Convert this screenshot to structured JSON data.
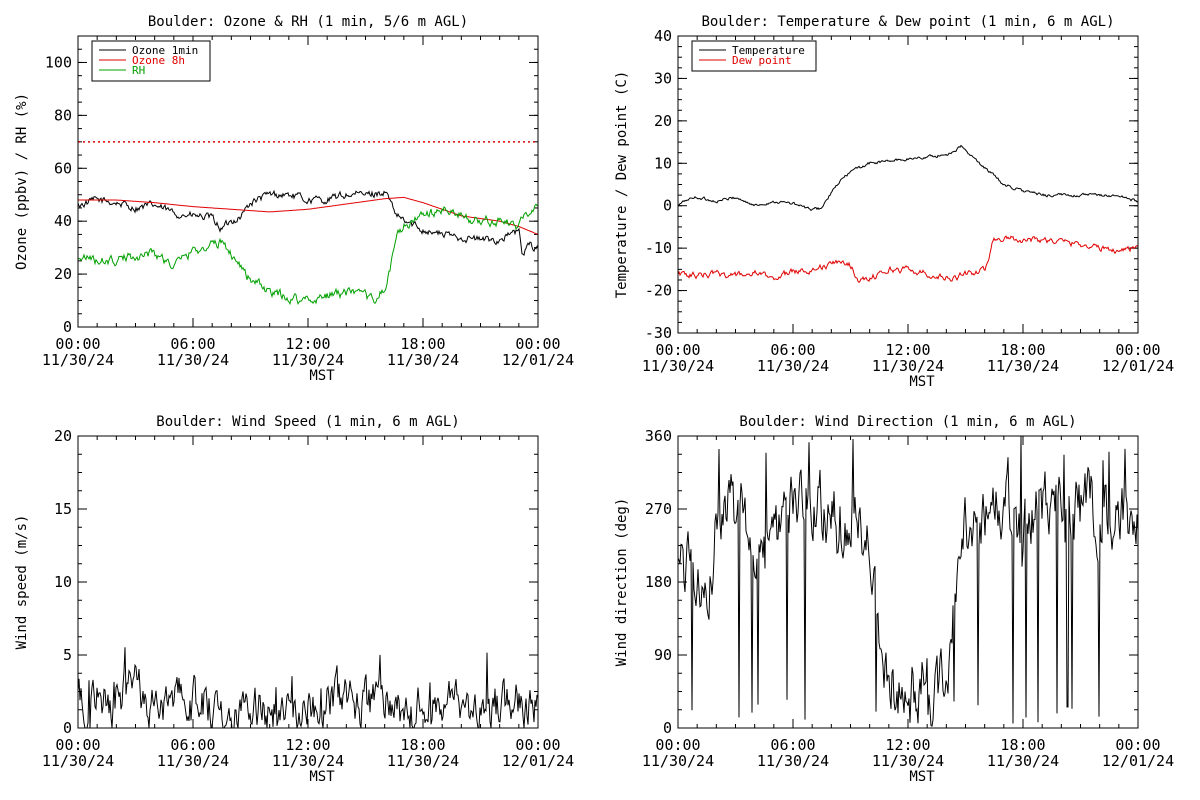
{
  "chart_data": [
    {
      "type": "line",
      "title": "Boulder: Ozone & RH (1 min, 5/6 m AGL)",
      "xlabel": "MST",
      "ylabel": "Ozone (ppbv) / RH (%)",
      "xlim": [
        0,
        24
      ],
      "ylim": [
        0,
        110
      ],
      "yticks": [
        0,
        20,
        40,
        60,
        80,
        100
      ],
      "xticks": [
        {
          "time": "00:00",
          "date": "11/30/24"
        },
        {
          "time": "06:00",
          "date": "11/30/24"
        },
        {
          "time": "12:00",
          "date": "11/30/24"
        },
        {
          "time": "18:00",
          "date": "11/30/24"
        },
        {
          "time": "00:00",
          "date": "12/01/24"
        }
      ],
      "legend": "top-left",
      "reference_line": {
        "y": 70,
        "color": "#e00000",
        "style": "dotted"
      },
      "series": [
        {
          "name": "Ozone 1min",
          "color": "#000000",
          "noise": 1.2,
          "x": [
            0,
            1,
            2,
            3,
            4,
            5,
            6,
            7,
            7.5,
            8,
            8.5,
            9,
            10,
            11,
            12,
            13,
            14,
            15,
            16,
            16.2,
            16.5,
            17,
            18,
            19,
            20,
            21,
            22,
            22.5,
            23,
            23.2,
            23.5,
            24
          ],
          "y": [
            46,
            48,
            47,
            45,
            46,
            43,
            42,
            41,
            37,
            40,
            42,
            47,
            50,
            50,
            48,
            48,
            50,
            50,
            51,
            49,
            43,
            40,
            37,
            35,
            34,
            33,
            33,
            35,
            36,
            27,
            31,
            30
          ]
        },
        {
          "name": "Ozone 8h",
          "color": "#e00000",
          "noise": 0,
          "x": [
            0,
            2,
            4,
            6,
            8,
            10,
            12,
            14,
            16,
            17,
            18,
            20,
            22,
            23,
            24
          ],
          "y": [
            48,
            48,
            47,
            45.5,
            44.5,
            43.5,
            44.5,
            46.5,
            48.5,
            49,
            47,
            42,
            40,
            38,
            35
          ]
        },
        {
          "name": "RH",
          "color": "#00a000",
          "noise": 1.5,
          "x": [
            0,
            1,
            2,
            3,
            4,
            5,
            6,
            7,
            7.5,
            8,
            8.5,
            9,
            10,
            11,
            12,
            13,
            14,
            15,
            15.5,
            16,
            16.3,
            16.6,
            17,
            18,
            19,
            20,
            21,
            22,
            23,
            23.5,
            24
          ],
          "y": [
            27,
            25,
            25,
            27,
            28,
            23,
            29,
            31,
            32,
            28,
            23,
            18,
            13,
            11,
            10,
            12,
            13,
            11,
            11,
            14,
            22,
            34,
            38,
            42,
            44,
            42,
            40,
            40,
            38,
            44,
            46
          ]
        }
      ]
    },
    {
      "type": "line",
      "title": "Boulder: Temperature & Dew point (1 min, 6 m AGL)",
      "xlabel": "MST",
      "ylabel": "Temperature / Dew point (C)",
      "xlim": [
        0,
        24
      ],
      "ylim": [
        -30,
        40
      ],
      "yticks": [
        -30,
        -20,
        -10,
        0,
        10,
        20,
        30,
        40
      ],
      "xticks": [
        {
          "time": "00:00",
          "date": "11/30/24"
        },
        {
          "time": "06:00",
          "date": "11/30/24"
        },
        {
          "time": "12:00",
          "date": "11/30/24"
        },
        {
          "time": "18:00",
          "date": "11/30/24"
        },
        {
          "time": "00:00",
          "date": "12/01/24"
        }
      ],
      "legend": "top-left",
      "series": [
        {
          "name": "Temperature",
          "color": "#000000",
          "noise": 0.3,
          "x": [
            0,
            0.5,
            1,
            2,
            3,
            4,
            5,
            6,
            7,
            7.5,
            8,
            8.5,
            9,
            10,
            11,
            12,
            13,
            14,
            14.8,
            15.2,
            16,
            16.5,
            17,
            18,
            19,
            20,
            21,
            22,
            23,
            24
          ],
          "y": [
            0,
            1.5,
            2,
            1,
            2,
            0,
            1,
            0.5,
            -1,
            -0.5,
            3,
            6,
            8,
            10,
            10.5,
            11,
            11.5,
            12,
            14,
            12,
            9,
            7,
            5,
            3.5,
            2.5,
            2.5,
            2.5,
            2.5,
            2.3,
            1
          ]
        },
        {
          "name": "Dew point",
          "color": "#e00000",
          "noise": 0.6,
          "x": [
            0,
            1,
            2,
            3,
            4,
            5,
            6,
            7,
            8,
            8.5,
            9,
            9.5,
            10,
            10.5,
            11,
            12,
            13,
            14,
            14.5,
            15,
            15.5,
            16,
            16.2,
            16.4,
            17,
            18,
            19,
            20,
            21,
            22,
            23,
            24
          ],
          "y": [
            -16,
            -16.5,
            -16,
            -16.5,
            -16,
            -17,
            -15.5,
            -15,
            -14,
            -13,
            -14,
            -18,
            -17,
            -16,
            -15,
            -15,
            -16,
            -17,
            -17,
            -16,
            -16,
            -15,
            -13,
            -8,
            -7.5,
            -8,
            -8,
            -8.5,
            -9,
            -10,
            -10.5,
            -9.5
          ]
        }
      ]
    },
    {
      "type": "line",
      "title": "Boulder: Wind Speed (1 min, 6 m AGL)",
      "xlabel": "MST",
      "ylabel": "Wind speed (m/s)",
      "xlim": [
        0,
        24
      ],
      "ylim": [
        0,
        20
      ],
      "yticks": [
        0,
        5,
        10,
        15,
        20
      ],
      "xticks": [
        {
          "time": "00:00",
          "date": "11/30/24"
        },
        {
          "time": "06:00",
          "date": "11/30/24"
        },
        {
          "time": "12:00",
          "date": "11/30/24"
        },
        {
          "time": "18:00",
          "date": "11/30/24"
        },
        {
          "time": "00:00",
          "date": "12/01/24"
        }
      ],
      "series": [
        {
          "name": "",
          "color": "#000000",
          "noise": 1.3,
          "x": [
            0,
            1,
            2,
            3,
            4,
            5,
            6,
            7,
            8,
            9,
            10,
            11,
            12,
            13,
            14,
            15,
            16,
            17,
            18,
            19,
            20,
            21,
            22,
            23,
            24
          ],
          "y": [
            2,
            2,
            2.2,
            2.3,
            2.1,
            1.8,
            1.6,
            1.8,
            1.6,
            1.5,
            1.2,
            1.3,
            1.6,
            1.8,
            1.9,
            1.8,
            1.3,
            1.0,
            1.2,
            1.4,
            1.5,
            1.6,
            1.5,
            1.4,
            1.5
          ]
        }
      ]
    },
    {
      "type": "line",
      "title": "Boulder: Wind Direction (1 min, 6 m AGL)",
      "xlabel": "MST",
      "ylabel": "Wind direction (deg)",
      "xlim": [
        0,
        24
      ],
      "ylim": [
        0,
        360
      ],
      "yticks": [
        0,
        90,
        180,
        270,
        360
      ],
      "xticks": [
        {
          "time": "00:00",
          "date": "11/30/24"
        },
        {
          "time": "06:00",
          "date": "11/30/24"
        },
        {
          "time": "12:00",
          "date": "11/30/24"
        },
        {
          "time": "18:00",
          "date": "11/30/24"
        },
        {
          "time": "00:00",
          "date": "12/01/24"
        }
      ],
      "series": [
        {
          "name": "",
          "color": "#000000",
          "noise": 35,
          "x": [
            0,
            1,
            1.5,
            2,
            3,
            4,
            4.5,
            5,
            6,
            7,
            8,
            8.5,
            9,
            10,
            10.5,
            11,
            12,
            13,
            13.5,
            14,
            14.5,
            15,
            15.5,
            16,
            17,
            18,
            19,
            20,
            21,
            22,
            23,
            24
          ],
          "y": [
            200,
            180,
            160,
            250,
            270,
            240,
            200,
            220,
            300,
            290,
            260,
            250,
            270,
            240,
            100,
            60,
            40,
            60,
            50,
            80,
            160,
            260,
            230,
            240,
            280,
            250,
            270,
            260,
            260,
            270,
            260,
            250
          ]
        }
      ]
    }
  ]
}
